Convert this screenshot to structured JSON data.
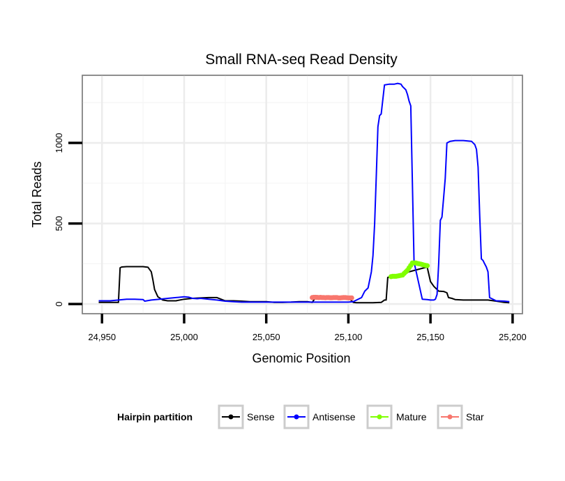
{
  "chart_data": {
    "type": "line",
    "title": "Small RNA-seq Read Density",
    "xlabel": "Genomic Position",
    "ylabel": "Total Reads",
    "xlim": [
      24938,
      25206
    ],
    "ylim": [
      -60,
      1420
    ],
    "x_ticks": [
      {
        "value": 24950,
        "label": "24,950"
      },
      {
        "value": 25000,
        "label": "25,000"
      },
      {
        "value": 25050,
        "label": "25,050"
      },
      {
        "value": 25100,
        "label": "25,100"
      },
      {
        "value": 25150,
        "label": "25,150"
      },
      {
        "value": 25200,
        "label": "25,200"
      }
    ],
    "y_ticks": [
      {
        "value": 0,
        "label": "0"
      },
      {
        "value": 500,
        "label": "500"
      },
      {
        "value": 1000,
        "label": "1000"
      }
    ],
    "y_minor_gridlines": [
      250,
      750,
      1250
    ],
    "x_minor_gridlines": [
      24975,
      25025,
      25075,
      25125,
      25175
    ],
    "legend": {
      "title": "Hairpin partition",
      "position": "bottom"
    },
    "series": [
      {
        "name": "Sense",
        "color": "#000000",
        "style": "line",
        "x": [
          24948,
          24960,
          24961,
          24962,
          24965,
          24970,
          24975,
          24978,
          24980,
          24981,
          24982,
          24984,
          24987,
          24990,
          24993,
          24995,
          25000,
          25005,
          25010,
          25015,
          25020,
          25025,
          25030,
          25035,
          25040,
          25045,
          25050,
          25055,
          25060,
          25065,
          25070,
          25075,
          25078,
          25080,
          25085,
          25090,
          25095,
          25100,
          25103,
          25105,
          25110,
          25115,
          25120,
          25122,
          25123,
          25124,
          25148,
          25150,
          25152,
          25155,
          25158,
          25160,
          25161,
          25163,
          25165,
          25170,
          25175,
          25180,
          25185,
          25190,
          25195,
          25198
        ],
        "values": [
          10,
          10,
          225,
          230,
          232,
          232,
          232,
          228,
          200,
          150,
          90,
          45,
          25,
          20,
          20,
          20,
          30,
          35,
          38,
          40,
          40,
          20,
          20,
          18,
          15,
          15,
          15,
          10,
          10,
          12,
          15,
          15,
          10,
          40,
          40,
          40,
          40,
          40,
          10,
          8,
          8,
          8,
          10,
          25,
          25,
          165,
          230,
          140,
          110,
          80,
          78,
          70,
          40,
          35,
          28,
          25,
          25,
          25,
          25,
          18,
          10,
          8
        ]
      },
      {
        "name": "Antisense",
        "color": "#0000ff",
        "style": "line",
        "x": [
          24948,
          24955,
          24960,
          24965,
          24970,
          24975,
          24976,
          24980,
          24985,
          24990,
          24995,
          25000,
          25003,
          25005,
          25008,
          25010,
          25015,
          25020,
          25025,
          25030,
          25035,
          25040,
          25045,
          25050,
          25055,
          25060,
          25065,
          25070,
          25075,
          25080,
          25085,
          25090,
          25095,
          25100,
          25103,
          25105,
          25108,
          25110,
          25112,
          25114,
          25115,
          25116,
          25117,
          25118,
          25119,
          25120,
          25122,
          25125,
          25128,
          25130,
          25132,
          25133,
          25135,
          25136,
          25137,
          25138,
          25140,
          25145,
          25148,
          25150,
          25152,
          25153,
          25154,
          25155,
          25156,
          25157,
          25158,
          25159,
          25160,
          25161,
          25162,
          25165,
          25170,
          25175,
          25177,
          25178,
          25179,
          25180,
          25181,
          25182,
          25183,
          25184,
          25185,
          25186,
          25190,
          25195,
          25198
        ],
        "values": [
          20,
          20,
          25,
          30,
          30,
          28,
          18,
          25,
          30,
          35,
          40,
          45,
          42,
          35,
          33,
          35,
          30,
          25,
          18,
          15,
          12,
          12,
          12,
          12,
          12,
          12,
          12,
          12,
          12,
          12,
          12,
          12,
          12,
          12,
          15,
          25,
          40,
          80,
          100,
          200,
          300,
          500,
          800,
          1100,
          1170,
          1180,
          1360,
          1365,
          1365,
          1370,
          1365,
          1350,
          1330,
          1300,
          1260,
          1230,
          260,
          30,
          28,
          25,
          25,
          30,
          60,
          250,
          520,
          540,
          660,
          780,
          1000,
          1005,
          1010,
          1015,
          1015,
          1010,
          990,
          960,
          850,
          540,
          280,
          270,
          250,
          230,
          200,
          40,
          20,
          18,
          15
        ]
      },
      {
        "name": "Mature",
        "color": "#80ff00",
        "style": "points",
        "x": [
          25126,
          25127,
          25128,
          25129,
          25130,
          25131,
          25132,
          25133,
          25134,
          25135,
          25136,
          25137,
          25138,
          25139,
          25140,
          25141,
          25142,
          25143,
          25144,
          25145,
          25146,
          25147,
          25148
        ],
        "values": [
          170,
          172,
          172,
          172,
          174,
          176,
          178,
          180,
          190,
          200,
          210,
          225,
          240,
          255,
          255,
          255,
          252,
          250,
          248,
          245,
          242,
          240,
          238
        ]
      },
      {
        "name": "Star",
        "color": "#f8766d",
        "style": "points",
        "x": [
          25078,
          25079,
          25080,
          25081,
          25082,
          25083,
          25084,
          25085,
          25086,
          25087,
          25088,
          25089,
          25090,
          25091,
          25092,
          25093,
          25094,
          25095,
          25096,
          25097,
          25098,
          25099,
          25100,
          25101,
          25102
        ],
        "values": [
          40,
          42,
          42,
          41,
          40,
          41,
          40,
          40,
          39,
          40,
          40,
          39,
          39,
          40,
          40,
          40,
          38,
          38,
          39,
          40,
          40,
          39,
          38,
          38,
          38
        ]
      }
    ]
  }
}
